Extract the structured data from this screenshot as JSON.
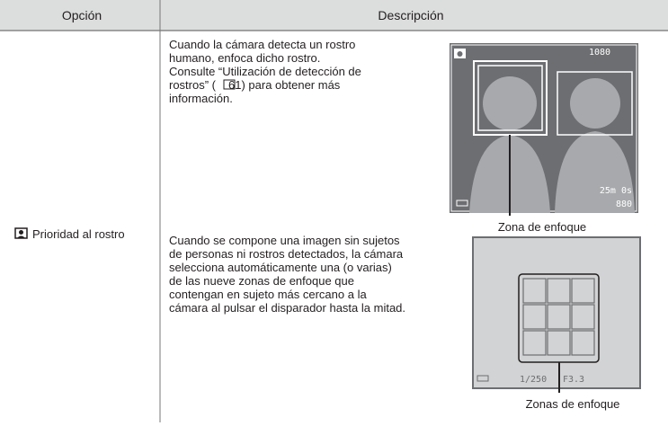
{
  "table": {
    "headers": [
      "Opción",
      "Descripción"
    ],
    "rows": [
      {
        "option": "Prioridad al rostro",
        "descriptions": [
          {
            "lines": [
              "Cuando la cámara detecta un rostro",
              "humano, enfoca dicho rostro.",
              "Consulte “Utilización de detección de",
              "rostros” (",
              "61) para obtener más",
              "información."
            ],
            "figure": {
              "label": "Zona de enfoque",
              "screen_texts": [
                "1080",
                "25m 0s",
                "880"
              ]
            }
          },
          {
            "lines": [
              "Cuando se compone una imagen sin sujetos",
              "de personas ni rostros detectados, la cámara",
              "selecciona automáticamente una (o varias)",
              "de las nueve zonas de enfoque que",
              "contengan en sujeto más cercano a la",
              "cámara al pulsar el disparador hasta la mitad."
            ],
            "figure": {
              "label": "Zonas de enfoque",
              "screen_texts": [
                "1/250",
                "F3.3"
              ]
            }
          }
        ]
      }
    ]
  }
}
